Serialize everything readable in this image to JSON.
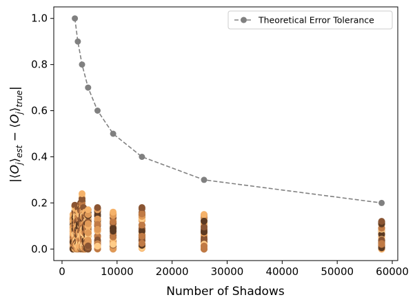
{
  "chart_data": {
    "type": "scatter",
    "xlabel": "Number of Shadows",
    "ylabel": "|⟨O_j⟩_est − ⟨O_j⟩_true|",
    "xlim": [
      -1500,
      61000
    ],
    "ylim": [
      -0.05,
      1.05
    ],
    "xticks": [
      0,
      10000,
      20000,
      30000,
      40000,
      50000,
      60000
    ],
    "yticks": [
      0.0,
      0.2,
      0.4,
      0.6,
      0.8,
      1.0
    ],
    "grid": false,
    "legend_position": "top-right",
    "tolerance_series": {
      "name": "Theoretical Error Tolerance",
      "color": "#808080",
      "style": "dashed-with-circles",
      "x": [
        2330,
        2870,
        3630,
        4740,
        6450,
        9290,
        14520,
        25800,
        58070
      ],
      "y": [
        1.0,
        0.9,
        0.8,
        0.7,
        0.6,
        0.5,
        0.4,
        0.3,
        0.2
      ]
    },
    "error_columns": [
      {
        "x": 2000,
        "max": 0.15
      },
      {
        "x": 2330,
        "max": 0.19
      },
      {
        "x": 2600,
        "max": 0.17
      },
      {
        "x": 2870,
        "max": 0.18
      },
      {
        "x": 3100,
        "max": 0.16
      },
      {
        "x": 3400,
        "max": 0.2
      },
      {
        "x": 3630,
        "max": 0.24
      },
      {
        "x": 3900,
        "max": 0.18
      },
      {
        "x": 4200,
        "max": 0.16
      },
      {
        "x": 4500,
        "max": 0.15
      },
      {
        "x": 4740,
        "max": 0.17
      },
      {
        "x": 6450,
        "max": 0.18
      },
      {
        "x": 9290,
        "max": 0.16
      },
      {
        "x": 14520,
        "max": 0.18
      },
      {
        "x": 25800,
        "max": 0.15
      },
      {
        "x": 58070,
        "max": 0.12
      }
    ],
    "error_palette": [
      "#ffcc88",
      "#f5b26a",
      "#e09a58",
      "#c07a45",
      "#8a5533",
      "#5c3a22"
    ]
  }
}
